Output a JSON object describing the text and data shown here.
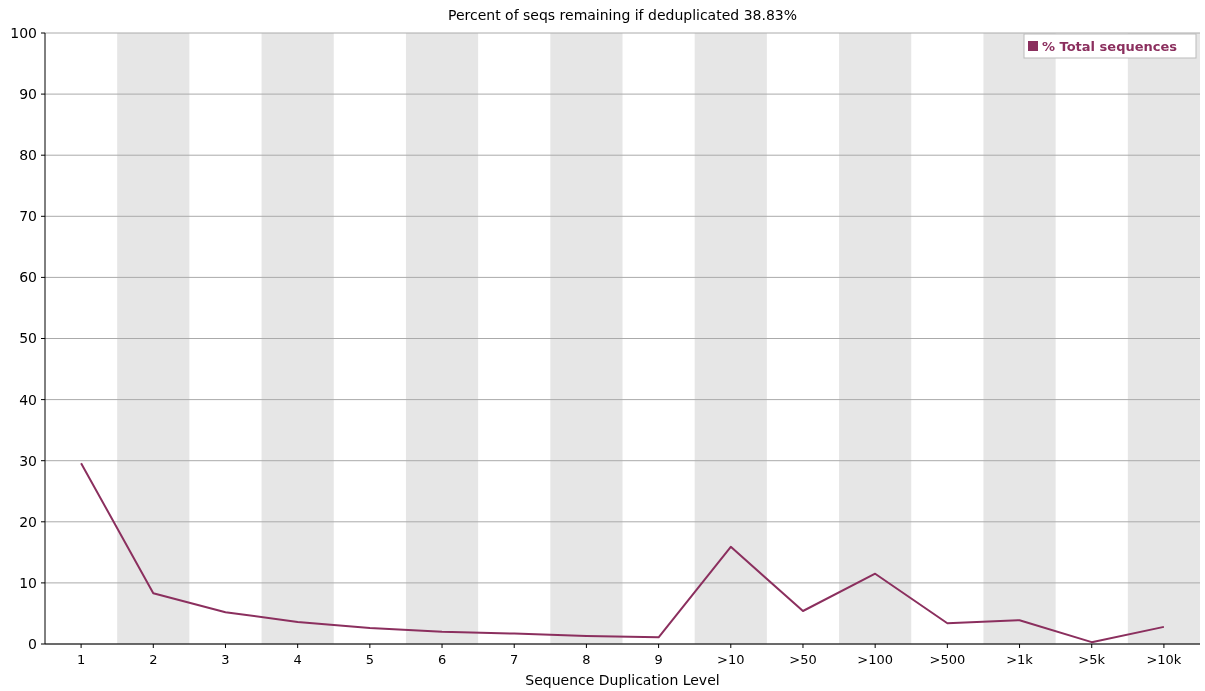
{
  "chart_data": {
    "type": "line",
    "title": "Percent of seqs remaining if deduplicated 38.83%",
    "xlabel": "Sequence Duplication Level",
    "categories": [
      "1",
      "2",
      "3",
      "4",
      "5",
      "6",
      "7",
      "8",
      "9",
      ">10",
      ">50",
      ">100",
      ">500",
      ">1k",
      ">5k",
      ">10k"
    ],
    "series": [
      {
        "name": "% Total sequences",
        "color": "#8b2f5e",
        "values": [
          29.6,
          8.3,
          5.2,
          3.6,
          2.6,
          2.0,
          1.7,
          1.3,
          1.1,
          15.9,
          5.4,
          11.5,
          3.4,
          3.9,
          0.3,
          2.8
        ]
      }
    ],
    "ylim": [
      0,
      100
    ],
    "yticks": [
      0,
      10,
      20,
      30,
      40,
      50,
      60,
      70,
      80,
      90,
      100
    ],
    "grid": "y",
    "legend": "top right",
    "marker": "none",
    "line_style": "solid",
    "bands": [
      {
        "axis": "x",
        "from": "2",
        "to": "2",
        "color": "#e6e6e6"
      },
      {
        "axis": "x",
        "from": "4",
        "to": "4",
        "color": "#e6e6e6"
      },
      {
        "axis": "x",
        "from": "6",
        "to": "6",
        "color": "#e6e6e6"
      },
      {
        "axis": "x",
        "from": "8",
        "to": "8",
        "color": "#e6e6e6"
      },
      {
        "axis": "x",
        "from": ">10",
        "to": ">10",
        "color": "#e6e6e6"
      },
      {
        "axis": "x",
        "from": ">100",
        "to": ">100",
        "color": "#e6e6e6"
      },
      {
        "axis": "x",
        "from": ">1k",
        "to": ">1k",
        "color": "#e6e6e6"
      },
      {
        "axis": "x",
        "from": ">10k",
        "to": ">10k",
        "color": "#e6e6e6"
      }
    ]
  }
}
